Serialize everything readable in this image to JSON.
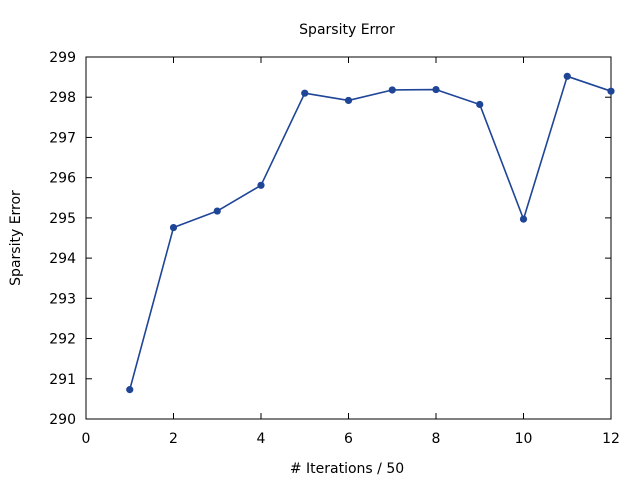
{
  "chart_data": {
    "type": "line",
    "title": "Sparsity Error",
    "xlabel": "# Iterations / 50",
    "ylabel": "Sparsity Error",
    "xlim": [
      0,
      12
    ],
    "ylim": [
      290,
      299
    ],
    "xticks": [
      0,
      2,
      4,
      6,
      8,
      10,
      12
    ],
    "yticks": [
      290,
      291,
      292,
      293,
      294,
      295,
      296,
      297,
      298,
      299
    ],
    "grid": false,
    "legend": "none",
    "series": [
      {
        "color": "#1f4597",
        "marker": "circle",
        "x": [
          1,
          2,
          3,
          4,
          5,
          6,
          7,
          8,
          9,
          10,
          11,
          12
        ],
        "y": [
          290.73,
          294.76,
          295.17,
          295.81,
          298.1,
          297.92,
          298.18,
          298.19,
          297.82,
          294.97,
          298.52,
          298.15
        ]
      }
    ]
  }
}
